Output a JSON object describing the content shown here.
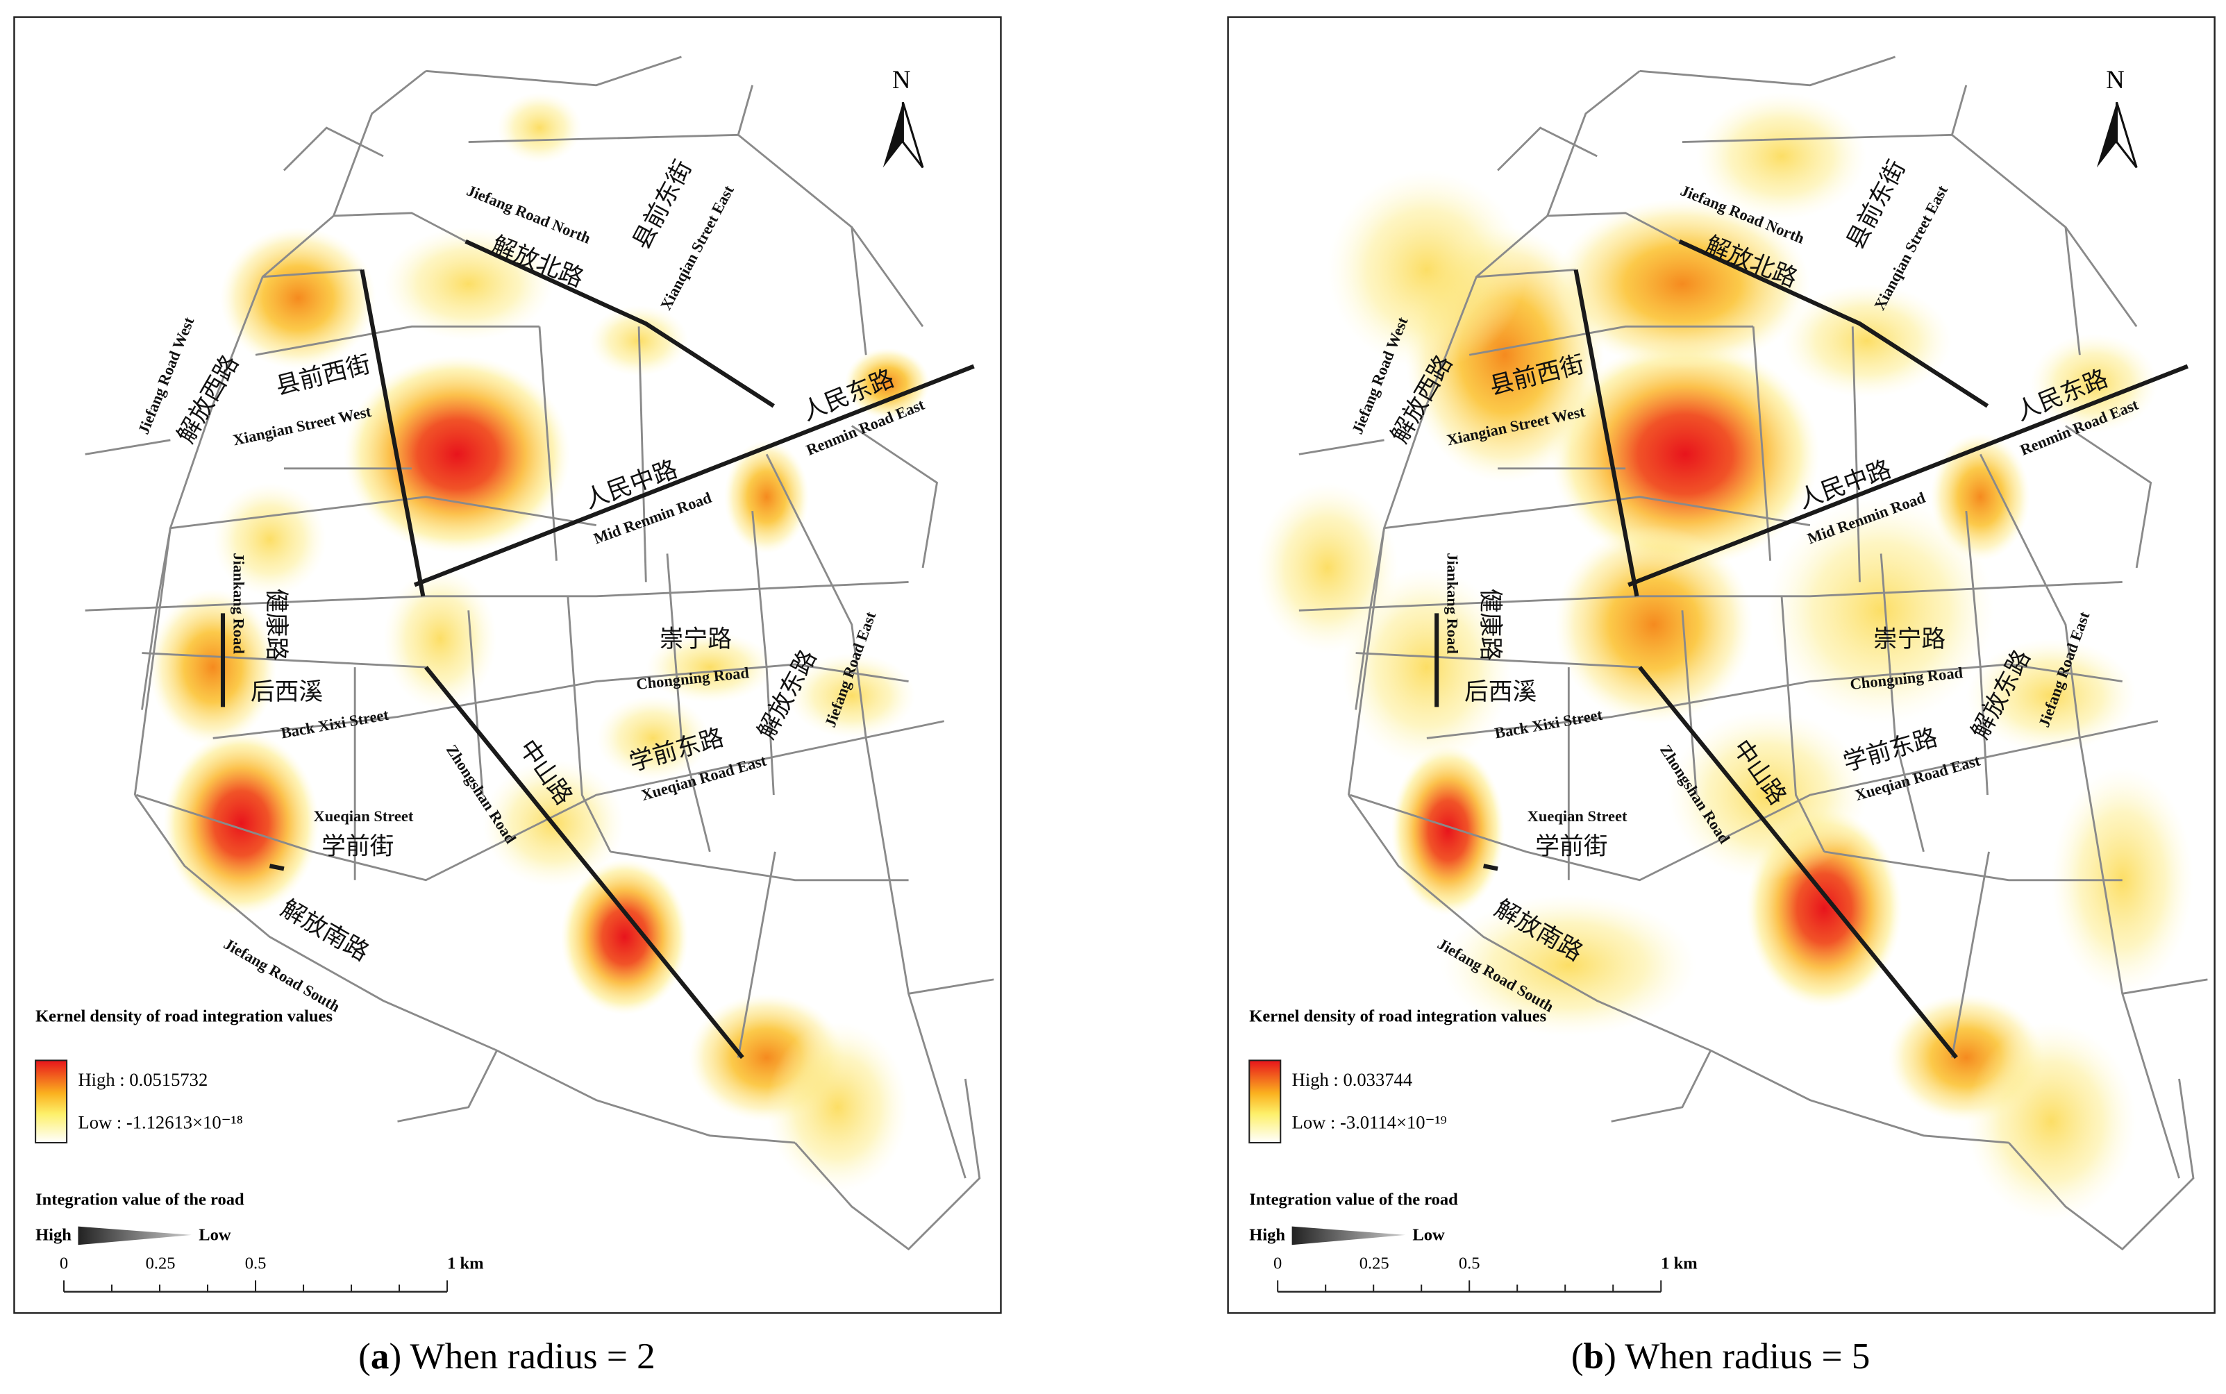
{
  "panels": [
    {
      "caption": [
        "(",
        "a",
        ") When radius = 2"
      ],
      "north": "N",
      "labels": [
        "Jiefang Road North",
        "解放北路",
        "县前东街",
        "Xianqian Street East",
        "Jiefang Road West",
        "解放西路",
        "县前西街",
        "Xiangian Street West",
        "人民东路",
        "Renmin Road East",
        "人民中路",
        "Mid Renmin Road",
        "Jiankang Road",
        "健康路",
        "崇宁路",
        "Chongning Road",
        "解放东路",
        "Jiefang Road East",
        "后西溪",
        "Back Xixi Street",
        "学前东路",
        "Xueqian Road East",
        "中山路",
        "Zhongshan Road",
        "Xueqian Street",
        "学前街",
        "解放南路",
        "Jiefang Road South"
      ],
      "density_legend": {
        "title": "Kernel density of road integration values",
        "high": "High : 0.0515732",
        "low": "Low : -1.12613×10⁻¹⁸"
      },
      "road_legend": {
        "title": "Integration value of the road",
        "high": "High",
        "low": "Low"
      },
      "scale_bar": [
        "0",
        "0.25",
        "0.5",
        "1 km"
      ]
    },
    {
      "caption": [
        "(",
        "b",
        ") When radius = 5"
      ],
      "north": "N",
      "labels": [
        "Jiefang Road North",
        "解放北路",
        "县前东街",
        "Xianqian Street East",
        "Jiefang Road West",
        "解放西路",
        "县前西街",
        "Xiangian Street West",
        "人民东路",
        "Renmin Road East",
        "人民中路",
        "Mid Renmin Road",
        "Jiankang Road",
        "健康路",
        "崇宁路",
        "Chongning Road",
        "解放东路",
        "Jiefang Road East",
        "后西溪",
        "Back Xixi Street",
        "学前东路",
        "Xueqian Road East",
        "中山路",
        "Zhongshan Road",
        "Xueqian Street",
        "学前街",
        "解放南路",
        "Jiefang Road South"
      ],
      "density_legend": {
        "title": "Kernel density of road integration values",
        "high": "High : 0.033744",
        "low": "Low : -3.0114×10⁻¹⁹"
      },
      "road_legend": {
        "title": "Integration value of the road",
        "high": "High",
        "low": "Low"
      },
      "scale_bar": [
        "0",
        "0.25",
        "0.5",
        "1 km"
      ]
    }
  ]
}
